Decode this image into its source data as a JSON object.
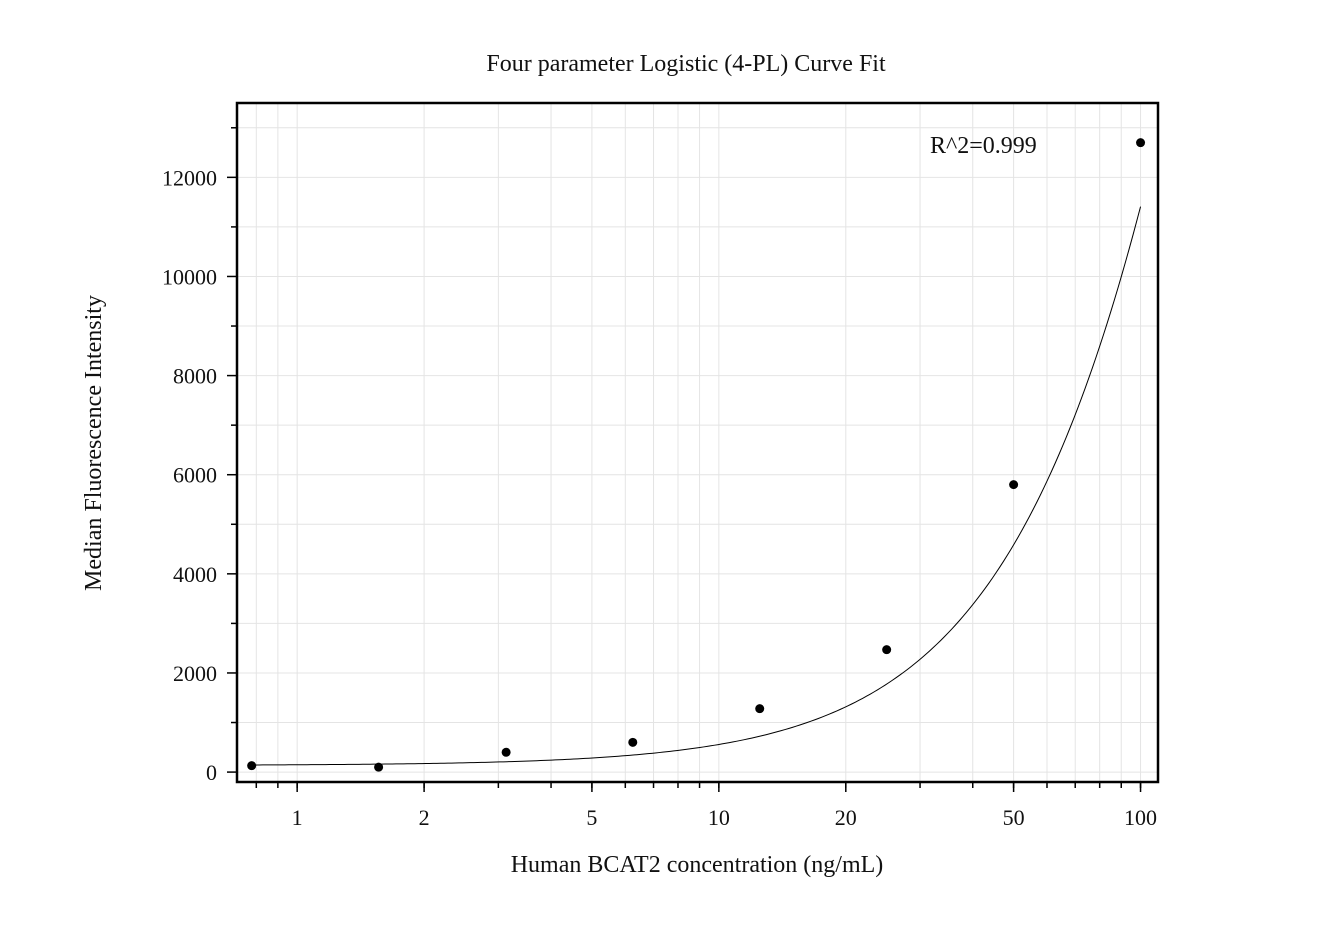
{
  "chart_data": {
    "type": "scatter",
    "title": "Four parameter Logistic (4-PL) Curve Fit",
    "xlabel": "Human BCAT2 concentration (ng/mL)",
    "ylabel": "Median Fluorescence Intensity",
    "x_scale": "log",
    "xlim": [
      0.72,
      110
    ],
    "ylim": [
      -200,
      13500
    ],
    "x_ticks": [
      1,
      2,
      5,
      10,
      20,
      50,
      100
    ],
    "x_tick_labels": [
      "1",
      "2",
      "5",
      "10",
      "20",
      "50",
      "100"
    ],
    "y_ticks": [
      0,
      2000,
      4000,
      6000,
      8000,
      10000,
      12000
    ],
    "y_tick_labels": [
      "0",
      "2000",
      "4000",
      "6000",
      "8000",
      "10000",
      "12000"
    ],
    "grid": true,
    "annotation": "R^2=0.999",
    "series": [
      {
        "kind": "points",
        "x": [
          0.78,
          1.56,
          3.13,
          6.25,
          12.5,
          25,
          50,
          100
        ],
        "y": [
          130,
          100,
          400,
          600,
          1280,
          2470,
          5800,
          12700
        ]
      },
      {
        "kind": "fit-curve",
        "model": "4PL",
        "params": {
          "A": 134.36,
          "B": 1.5,
          "C": 300,
          "D": 70000
        }
      }
    ]
  }
}
